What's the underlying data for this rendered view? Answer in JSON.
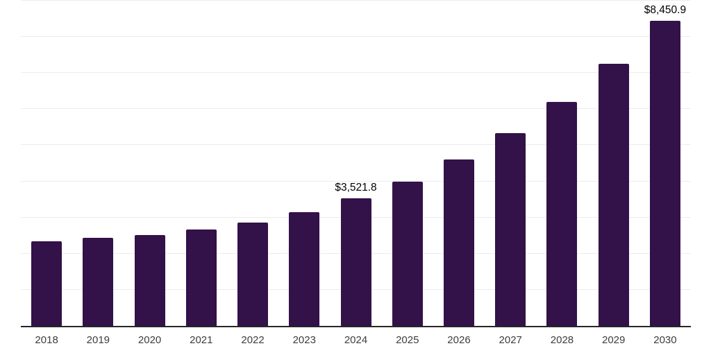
{
  "chart_data": {
    "type": "bar",
    "title": "",
    "xlabel": "",
    "ylabel": "",
    "categories": [
      "2018",
      "2019",
      "2020",
      "2021",
      "2022",
      "2023",
      "2024",
      "2025",
      "2026",
      "2027",
      "2028",
      "2029",
      "2030"
    ],
    "values": [
      2340,
      2430,
      2520,
      2665,
      2865,
      3140,
      3521.8,
      3995,
      4600,
      5330,
      6205,
      7255,
      8450.9
    ],
    "data_labels": [
      "",
      "",
      "",
      "",
      "",
      "",
      "$3,521.8",
      "",
      "",
      "",
      "",
      "",
      "$8,450.9"
    ],
    "ylim": [
      0,
      9000
    ],
    "gridline_step": 1000,
    "grid": "horizontal-only",
    "legend": "none",
    "y_axis_tick_labels": "none"
  },
  "colors": {
    "background": "#ffffff",
    "bar": "#331149",
    "gridline": "#ececec",
    "axis_line": "#262626",
    "tick_label": "#3d3d3d",
    "value_label": "#000000"
  }
}
